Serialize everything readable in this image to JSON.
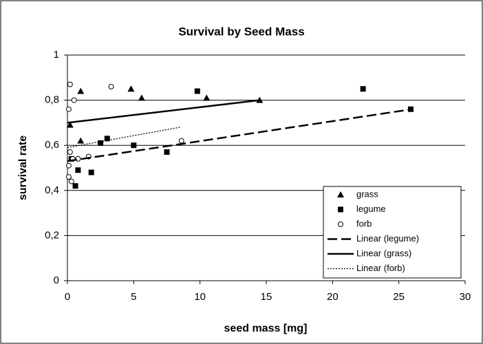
{
  "chart_data": {
    "type": "scatter",
    "title": "Survival by Seed Mass",
    "x_label": "seed mass [mg]",
    "y_label": "survival rate",
    "xlim": [
      0,
      30
    ],
    "xticks": [
      0,
      5,
      10,
      15,
      20,
      25,
      30
    ],
    "ylim": [
      0,
      1
    ],
    "yticks": [
      0,
      {
        "value": 0.2,
        "label": "0,2"
      },
      {
        "value": 0.4,
        "label": "0,4"
      },
      {
        "value": 0.6,
        "label": "0,6"
      },
      {
        "value": 0.8,
        "label": "0,8"
      },
      1
    ],
    "grid": true,
    "legend": "lower right",
    "series": [
      {
        "name": "grass",
        "color": "#000000",
        "marker": "triangle",
        "x": [
          0.2,
          1.0,
          1.0,
          4.8,
          5.6,
          10.5,
          14.5
        ],
        "values": [
          0.69,
          0.84,
          0.62,
          0.85,
          0.81,
          0.81,
          0.8
        ]
      },
      {
        "name": "legume",
        "color": "#000000",
        "marker": "square",
        "x": [
          0.3,
          0.6,
          0.8,
          1.8,
          2.5,
          3.0,
          5.0,
          7.5,
          9.8,
          22.3,
          25.9
        ],
        "values": [
          0.54,
          0.42,
          0.49,
          0.48,
          0.61,
          0.63,
          0.6,
          0.57,
          0.84,
          0.85,
          0.76
        ]
      },
      {
        "name": "forb",
        "color": "#000000",
        "marker": "circle",
        "x": [
          0.2,
          0.1,
          0.5,
          3.3,
          0.2,
          0.1,
          0.4,
          0.8,
          1.6,
          0.1,
          0.3,
          8.6
        ],
        "values": [
          0.87,
          0.76,
          0.8,
          0.86,
          0.57,
          0.51,
          0.54,
          0.54,
          0.55,
          0.46,
          0.44,
          0.62
        ]
      },
      {
        "name": "Linear (legume)",
        "color": "#000000",
        "line": "dash",
        "x": [
          0,
          26
        ],
        "values": [
          0.53,
          0.76
        ]
      },
      {
        "name": "Linear (grass)",
        "color": "#000000",
        "line": "solid",
        "x": [
          0,
          14.5
        ],
        "values": [
          0.7,
          0.8
        ]
      },
      {
        "name": "Linear (forb)",
        "color": "#000000",
        "line": "dot",
        "x": [
          0,
          8.5
        ],
        "values": [
          0.59,
          0.68
        ]
      }
    ]
  }
}
